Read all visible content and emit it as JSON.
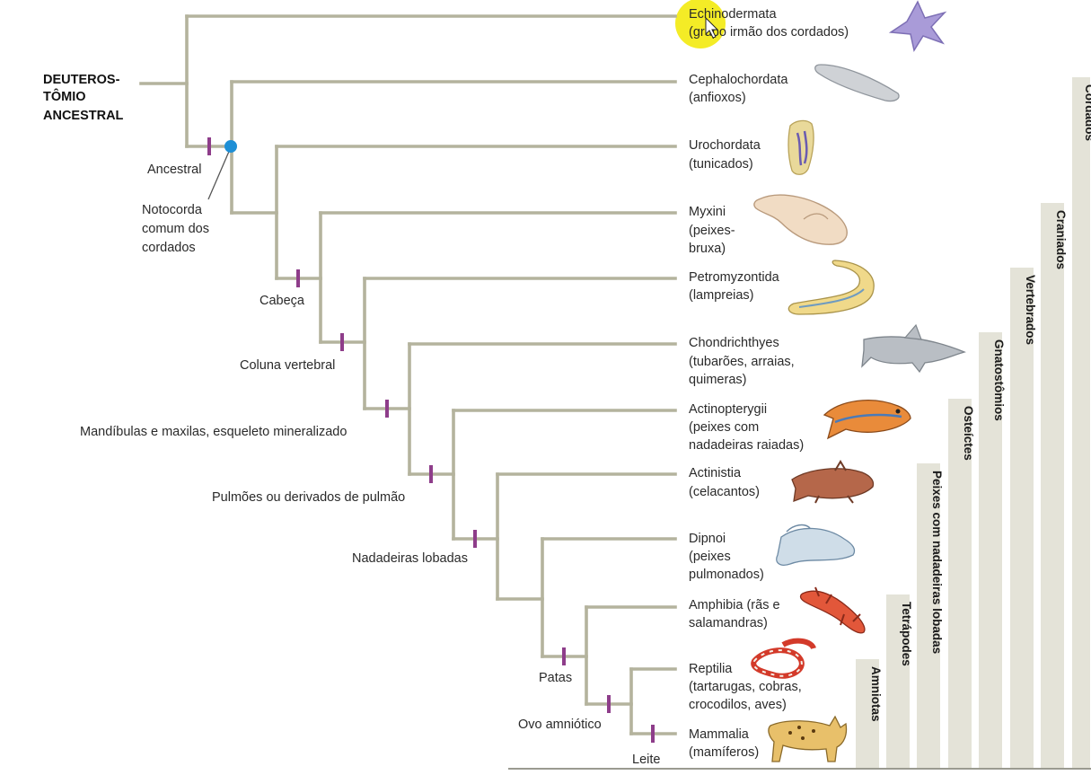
{
  "root_label": [
    "DEUTEROS-",
    "TÔMIO",
    "ANCESTRAL"
  ],
  "taxa": [
    {
      "name": "Echinodermata",
      "common": [
        "(grupo irmão dos cordados)"
      ],
      "icon": "starfish-icon"
    },
    {
      "name": "Cephalochordata",
      "common": [
        "(anfioxos)"
      ],
      "icon": "lancelet-icon"
    },
    {
      "name": "Urochordata",
      "common": [
        "(tunicados)"
      ],
      "icon": "tunicate-icon"
    },
    {
      "name": "Myxini",
      "common": [
        "(peixes-",
        "bruxa)"
      ],
      "icon": "hagfish-icon"
    },
    {
      "name": "Petromyzontida",
      "common": [
        "(lampreias)"
      ],
      "icon": "lamprey-icon"
    },
    {
      "name": "Chondrichthyes",
      "common": [
        "(tubarões, arraias,",
        "quimeras)"
      ],
      "icon": "shark-icon"
    },
    {
      "name": "Actinopterygii",
      "common": [
        "(peixes com",
        "nadadeiras raiadas)"
      ],
      "icon": "ray-finned-fish-icon"
    },
    {
      "name": "Actinistia",
      "common": [
        "(celacantos)"
      ],
      "icon": "coelacanth-icon"
    },
    {
      "name": "Dipnoi",
      "common": [
        "(peixes",
        "pulmonados)"
      ],
      "icon": "lungfish-icon"
    },
    {
      "name": "Amphibia (rãs e",
      "common": [
        "salamandras)"
      ],
      "icon": "salamander-icon"
    },
    {
      "name": "Reptilia",
      "common": [
        "(tartarugas, cobras,",
        "crocodilos, aves)"
      ],
      "icon": "snake-icon"
    },
    {
      "name": "Mammalia",
      "common": [
        "(mamíferos)"
      ],
      "icon": "lynx-icon"
    }
  ],
  "traits": [
    {
      "label": [
        "Ancestral"
      ],
      "node": "chordates-stem"
    },
    {
      "label": [
        "Notocorda",
        "comum dos",
        "cordados"
      ],
      "node": "notochord-node"
    },
    {
      "label": [
        "Cabeça"
      ],
      "node": "craniates"
    },
    {
      "label": [
        "Coluna vertebral"
      ],
      "node": "vertebrates"
    },
    {
      "label": [
        "Mandíbulas e maxilas, esqueleto mineralizado"
      ],
      "node": "gnathostomes"
    },
    {
      "label": [
        "Pulmões ou derivados de pulmão"
      ],
      "node": "osteichthyans"
    },
    {
      "label": [
        "Nadadeiras lobadas"
      ],
      "node": "lobe-fins"
    },
    {
      "label": [
        "Patas"
      ],
      "node": "tetrapods"
    },
    {
      "label": [
        "Ovo amniótico"
      ],
      "node": "amniotes"
    },
    {
      "label": [
        "Leite"
      ],
      "node": "mammals"
    }
  ],
  "groups": [
    "Cordados",
    "Craniados",
    "Vertebrados",
    "Gnatostômios",
    "Osteíctes",
    "Peixes com nadadeiras lobadas",
    "Tetrápodes",
    "Amniotas"
  ],
  "colors": {
    "branch": "#b4b39d",
    "trait_mark": "#8e3d8a",
    "notochord_dot": "#1e8fd6",
    "group_bar": "#e4e3d8",
    "cursor_highlight": "#f2e900"
  }
}
